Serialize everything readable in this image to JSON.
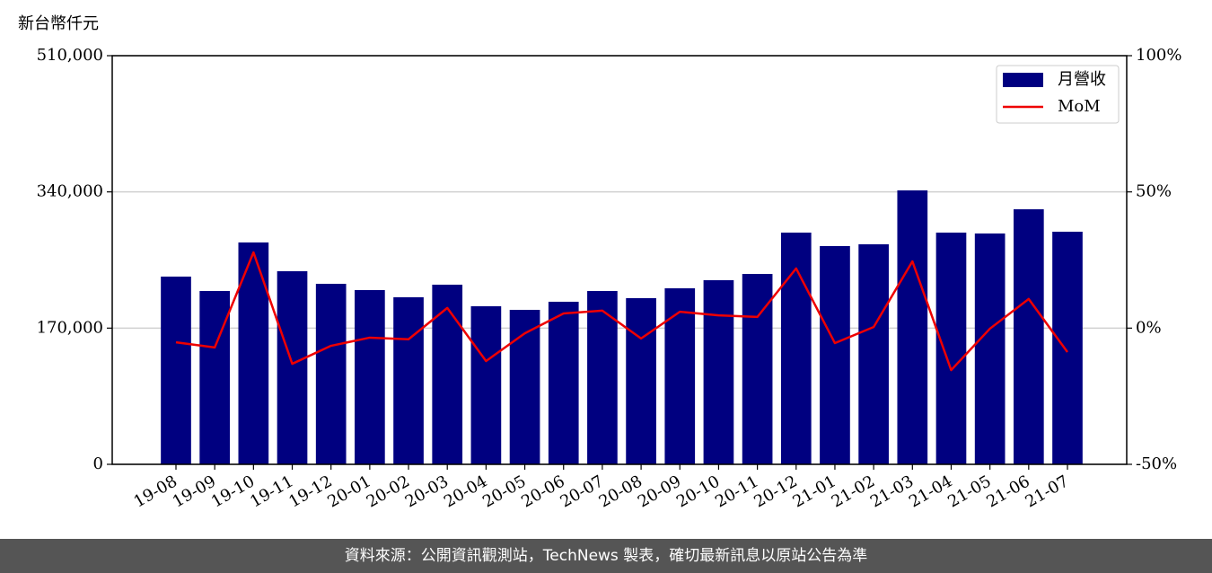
{
  "chart_data": {
    "type": "bar",
    "y_label": "新台幣仟元",
    "categories": [
      "19-08",
      "19-09",
      "19-10",
      "19-11",
      "19-12",
      "20-01",
      "20-02",
      "20-03",
      "20-04",
      "20-05",
      "20-06",
      "20-07",
      "20-08",
      "20-09",
      "20-10",
      "20-11",
      "20-12",
      "21-01",
      "21-02",
      "21-03",
      "21-04",
      "21-05",
      "21-06",
      "21-07"
    ],
    "series": [
      {
        "name": "月營收",
        "type": "bar",
        "color": "#000080",
        "values": [
          234300,
          216300,
          276900,
          241000,
          225300,
          217500,
          208500,
          224200,
          197300,
          192800,
          202900,
          216300,
          207400,
          219700,
          229800,
          237600,
          289200,
          272400,
          274600,
          341900,
          289200,
          288100,
          318300,
          290300
        ]
      },
      {
        "name": "MoM",
        "type": "line",
        "axis": "y2",
        "color": "#ee0000",
        "values": [
          -5.2,
          -7.1,
          27.8,
          -13.1,
          -6.5,
          -3.5,
          -4.1,
          7.4,
          -12.1,
          -1.9,
          5.4,
          6.4,
          -3.8,
          6.0,
          4.7,
          4.1,
          21.9,
          -5.5,
          0.4,
          24.5,
          -15.4,
          -0.2,
          10.7,
          -8.8
        ]
      }
    ],
    "ylim": [
      0,
      510000
    ],
    "yticks": [
      0,
      {
        "value": 170000,
        "label": "170,000"
      },
      {
        "value": 340000,
        "label": "340,000"
      },
      {
        "value": 510000,
        "label": "510,000"
      }
    ],
    "y2lim": [
      -50,
      100
    ],
    "y2ticks": [
      {
        "value": -50,
        "label": "-50%"
      },
      {
        "value": 0,
        "label": "0%"
      },
      {
        "value": 50,
        "label": "50%"
      },
      {
        "value": 100,
        "label": "100%"
      }
    ],
    "grid": true,
    "legend": "upper right"
  },
  "footer": "資料來源：公開資訊觀測站，TechNews 製表，確切最新訊息以原站公告為準"
}
